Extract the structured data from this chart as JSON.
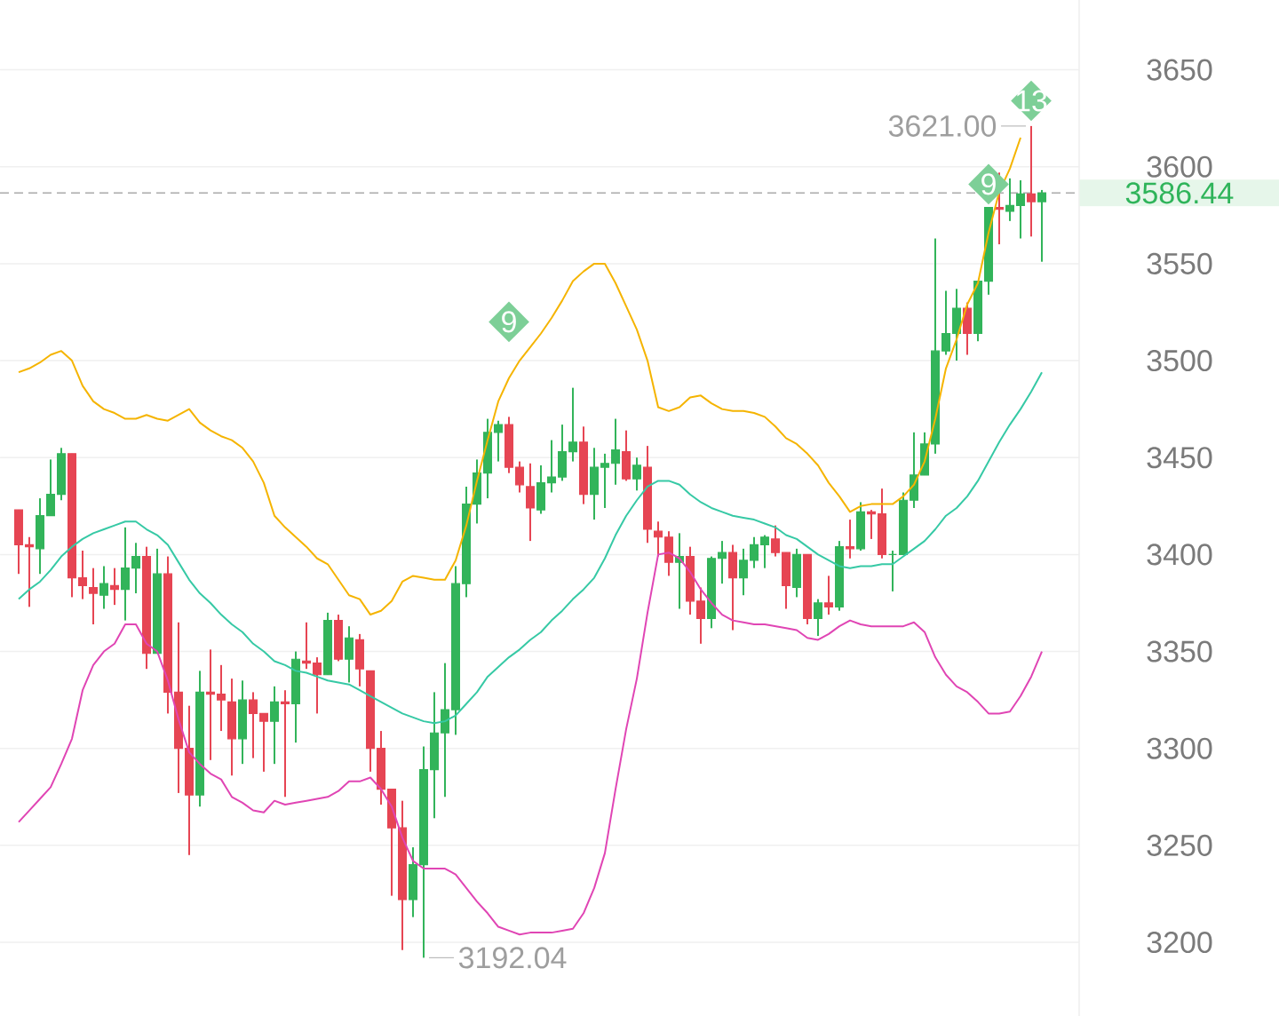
{
  "chart_data": {
    "type": "candlestick",
    "categories": [
      null,
      null,
      null,
      null,
      null,
      null,
      null,
      null,
      null,
      null,
      null,
      null,
      null,
      null,
      null,
      null,
      null,
      null,
      null,
      null,
      null,
      null,
      null,
      null,
      null,
      null,
      null,
      null,
      null,
      null,
      null,
      null,
      null,
      null,
      null,
      null,
      null,
      null,
      null,
      null,
      null,
      null,
      null,
      null,
      null,
      null,
      null,
      null,
      null,
      null,
      null,
      null,
      null,
      null,
      null,
      null,
      null,
      null,
      null,
      null,
      null,
      null,
      null,
      null,
      null,
      null,
      null,
      null,
      null,
      null,
      null,
      null,
      null,
      null,
      null,
      null,
      null,
      null,
      null,
      null,
      null,
      null,
      null,
      null,
      null,
      null,
      null,
      null,
      null,
      null,
      null,
      null,
      null,
      null,
      null,
      null,
      null
    ],
    "ohlc": [
      [
        3423,
        3423,
        3390,
        3405
      ],
      [
        3405,
        3409,
        3373,
        3404
      ],
      [
        3403,
        3429,
        3390,
        3420
      ],
      [
        3420,
        3449,
        3420,
        3431
      ],
      [
        3431,
        3455,
        3428,
        3452
      ],
      [
        3452,
        3452,
        3378,
        3388
      ],
      [
        3388,
        3402,
        3377,
        3384
      ],
      [
        3383,
        3393,
        3364,
        3380
      ],
      [
        3379,
        3394,
        3372,
        3385
      ],
      [
        3384,
        3393,
        3374,
        3382
      ],
      [
        3382,
        3414,
        3366,
        3393
      ],
      [
        3393,
        3406,
        3380,
        3399
      ],
      [
        3399,
        3404,
        3341,
        3349
      ],
      [
        3349,
        3403,
        3349,
        3390
      ],
      [
        3390,
        3399,
        3318,
        3329
      ],
      [
        3329,
        3365,
        3277,
        3300
      ],
      [
        3300,
        3322,
        3245,
        3276
      ],
      [
        3276,
        3340,
        3270,
        3329
      ],
      [
        3329,
        3351,
        3294,
        3328
      ],
      [
        3328,
        3343,
        3309,
        3325
      ],
      [
        3324,
        3336,
        3286,
        3305
      ],
      [
        3305,
        3335,
        3292,
        3325
      ],
      [
        3325,
        3329,
        3295,
        3318
      ],
      [
        3318,
        3318,
        3288,
        3314
      ],
      [
        3314,
        3332,
        3292,
        3324
      ],
      [
        3324,
        3330,
        3275,
        3323
      ],
      [
        3323,
        3350,
        3303,
        3346
      ],
      [
        3345,
        3365,
        3341,
        3344
      ],
      [
        3344,
        3347,
        3318,
        3338
      ],
      [
        3338,
        3370,
        3338,
        3366
      ],
      [
        3366,
        3369,
        3345,
        3346
      ],
      [
        3346,
        3363,
        3334,
        3357
      ],
      [
        3356,
        3359,
        3332,
        3341
      ],
      [
        3340,
        3340,
        3288,
        3300
      ],
      [
        3300,
        3309,
        3271,
        3279
      ],
      [
        3279,
        3279,
        3224,
        3259
      ],
      [
        3259,
        3273,
        3196,
        3222
      ],
      [
        3222,
        3249,
        3213,
        3240
      ],
      [
        3240,
        3301,
        3192.04,
        3289
      ],
      [
        3289,
        3329,
        3264,
        3308
      ],
      [
        3308,
        3344,
        3275,
        3320
      ],
      [
        3320,
        3394,
        3307,
        3385
      ],
      [
        3385,
        3435,
        3378,
        3426
      ],
      [
        3426,
        3449,
        3416,
        3442
      ],
      [
        3442,
        3470,
        3429,
        3463
      ],
      [
        3463,
        3469,
        3448,
        3467
      ],
      [
        3467,
        3471,
        3442,
        3445
      ],
      [
        3445,
        3448,
        3432,
        3436
      ],
      [
        3435,
        3447,
        3407,
        3424
      ],
      [
        3423,
        3446,
        3421,
        3437
      ],
      [
        3437,
        3459,
        3432,
        3440
      ],
      [
        3440,
        3467,
        3438,
        3453
      ],
      [
        3453,
        3486,
        3448,
        3458
      ],
      [
        3458,
        3466,
        3426,
        3431
      ],
      [
        3431,
        3455,
        3418,
        3445
      ],
      [
        3445,
        3452,
        3424,
        3447
      ],
      [
        3447,
        3470,
        3436,
        3454
      ],
      [
        3453,
        3464,
        3438,
        3439
      ],
      [
        3439,
        3450,
        3433,
        3446
      ],
      [
        3445,
        3456,
        3406,
        3413
      ],
      [
        3412,
        3417,
        3399,
        3409
      ],
      [
        3409,
        3412,
        3389,
        3396
      ],
      [
        3396,
        3411,
        3372,
        3399
      ],
      [
        3399,
        3404,
        3369,
        3376
      ],
      [
        3376,
        3383,
        3354,
        3367
      ],
      [
        3367,
        3399,
        3362,
        3398
      ],
      [
        3398,
        3407,
        3385,
        3401
      ],
      [
        3401,
        3405,
        3361,
        3388
      ],
      [
        3388,
        3403,
        3379,
        3397
      ],
      [
        3397,
        3409,
        3393,
        3405
      ],
      [
        3405,
        3410,
        3393,
        3409
      ],
      [
        3408,
        3415,
        3399,
        3401
      ],
      [
        3401,
        3401,
        3372,
        3384
      ],
      [
        3383,
        3403,
        3378,
        3400
      ],
      [
        3400,
        3400,
        3364,
        3367
      ],
      [
        3367,
        3377,
        3358,
        3375
      ],
      [
        3375,
        3389,
        3369,
        3373
      ],
      [
        3373,
        3407,
        3371,
        3404
      ],
      [
        3404,
        3418,
        3398,
        3403
      ],
      [
        3403,
        3427,
        3402,
        3422
      ],
      [
        3422,
        3423,
        3408,
        3421
      ],
      [
        3421,
        3434,
        3398,
        3400
      ],
      [
        3400,
        3402,
        3381,
        3400
      ],
      [
        3400,
        3432,
        3400,
        3428
      ],
      [
        3428,
        3463,
        3424,
        3441
      ],
      [
        3441,
        3463,
        3441,
        3457
      ],
      [
        3457,
        3563,
        3452,
        3505
      ],
      [
        3505,
        3536,
        3503,
        3514
      ],
      [
        3514,
        3537,
        3500,
        3527
      ],
      [
        3527,
        3530,
        3503,
        3514
      ],
      [
        3514,
        3541,
        3510,
        3541
      ],
      [
        3541,
        3579,
        3534,
        3579
      ],
      [
        3579,
        3597,
        3560,
        3578
      ],
      [
        3577,
        3594,
        3572,
        3580
      ],
      [
        3580,
        3593,
        3563,
        3586
      ],
      [
        3586,
        3621.0,
        3564,
        3582
      ],
      [
        3582,
        3588,
        3551,
        3586.44
      ]
    ],
    "colors": [
      "#e64553",
      "#e64553",
      "#32b45a",
      "#32b45a",
      "#32b45a",
      "#e64553",
      "#e64553",
      "#e64553",
      "#32b45a",
      "#e64553",
      "#32b45a",
      "#32b45a",
      "#e64553",
      "#32b45a",
      "#e64553",
      "#e64553",
      "#e64553",
      "#32b45a",
      "#e64553",
      "#e64553",
      "#e64553",
      "#32b45a",
      "#e64553",
      "#e64553",
      "#32b45a",
      "#e64553",
      "#32b45a",
      "#e64553",
      "#e64553",
      "#32b45a",
      "#e64553",
      "#32b45a",
      "#e64553",
      "#e64553",
      "#e64553",
      "#e64553",
      "#e64553",
      "#32b45a",
      "#32b45a",
      "#32b45a",
      "#32b45a",
      "#32b45a",
      "#32b45a",
      "#32b45a",
      "#32b45a",
      "#32b45a",
      "#e64553",
      "#e64553",
      "#e64553",
      "#32b45a",
      "#32b45a",
      "#32b45a",
      "#32b45a",
      "#e64553",
      "#32b45a",
      "#32b45a",
      "#32b45a",
      "#e64553",
      "#32b45a",
      "#e64553",
      "#e64553",
      "#e64553",
      "#32b45a",
      "#e64553",
      "#e64553",
      "#32b45a",
      "#32b45a",
      "#e64553",
      "#32b45a",
      "#32b45a",
      "#32b45a",
      "#e64553",
      "#e64553",
      "#32b45a",
      "#e64553",
      "#32b45a",
      "#e64553",
      "#32b45a",
      "#e64553",
      "#32b45a",
      "#e64553",
      "#e64553",
      "#32b45a",
      "#32b45a",
      "#32b45a",
      "#32b45a",
      "#32b45a",
      "#32b45a",
      "#32b45a",
      "#e64553",
      "#32b45a",
      "#32b45a",
      "#e64553",
      "#32b45a",
      "#32b45a",
      "#e64553",
      "#32b45a"
    ],
    "series": [
      {
        "type": "line",
        "color": "#f5b400",
        "values": [
          3494,
          3496,
          3499,
          3503,
          3505,
          3500,
          3487,
          3479,
          3475,
          3473,
          3470,
          3470,
          3472,
          3470,
          3469,
          3472,
          3475,
          3468,
          3464,
          3461,
          3459,
          3455,
          3448,
          3437,
          3420,
          3414,
          3409,
          3404,
          3398,
          3395,
          3387,
          3379,
          3377,
          3369,
          3371,
          3376,
          3386,
          3389,
          3388,
          3387,
          3387,
          3397,
          3415,
          3438,
          3459,
          3479,
          3491,
          3500,
          3507,
          3514,
          3522,
          3531,
          3541,
          3546,
          3550,
          3550,
          3540,
          3528,
          3516,
          3500,
          3476,
          3474,
          3476,
          3481,
          3482,
          3478,
          3475,
          3474,
          3474,
          3473,
          3471,
          3466,
          3460,
          3457,
          3452,
          3446,
          3437,
          3430,
          3422,
          3425,
          3426,
          3426,
          3426,
          3430,
          3436,
          3448,
          3470,
          3496,
          3511,
          3529,
          3540,
          3566,
          3587,
          3599,
          3615,
          null,
          null
        ]
      },
      {
        "type": "line",
        "color": "#36c9a5",
        "values": [
          3377,
          3382,
          3386,
          3392,
          3399,
          3404,
          3408,
          3411,
          3413,
          3415,
          3417,
          3417,
          3413,
          3410,
          3405,
          3396,
          3387,
          3380,
          3375,
          3369,
          3364,
          3360,
          3354,
          3350,
          3345,
          3343,
          3340,
          3339,
          3337,
          3335,
          3334,
          3333,
          3330,
          3327,
          3324,
          3321,
          3318,
          3316,
          3314,
          3313,
          3314,
          3317,
          3323,
          3329,
          3337,
          3342,
          3347,
          3351,
          3356,
          3360,
          3366,
          3371,
          3377,
          3382,
          3388,
          3398,
          3410,
          3420,
          3428,
          3435,
          3438,
          3438,
          3436,
          3431,
          3427,
          3424,
          3422,
          3420,
          3419,
          3418,
          3416,
          3414,
          3410,
          3408,
          3404,
          3400,
          3397,
          3394,
          3393,
          3394,
          3394,
          3395,
          3395,
          3399,
          3403,
          3407,
          3413,
          3420,
          3424,
          3430,
          3438,
          3448,
          3458,
          3467,
          3475,
          3484,
          3494
        ]
      },
      {
        "type": "line",
        "color": "#e045b4",
        "values": [
          3262,
          3268,
          3274,
          3280,
          3292,
          3305,
          3330,
          3343,
          3350,
          3354,
          3364,
          3364,
          3354,
          3350,
          3335,
          3315,
          3298,
          3292,
          3287,
          3284,
          3275,
          3272,
          3268,
          3267,
          3273,
          3271,
          3272,
          3273,
          3274,
          3275,
          3278,
          3283,
          3283,
          3285,
          3279,
          3270,
          3254,
          3242,
          3238,
          3238,
          3238,
          3235,
          3228,
          3221,
          3215,
          3208,
          3206,
          3204,
          3205,
          3205,
          3205,
          3206,
          3207,
          3215,
          3228,
          3246,
          3279,
          3310,
          3336,
          3370,
          3400,
          3401,
          3398,
          3391,
          3382,
          3375,
          3369,
          3366,
          3365,
          3364,
          3364,
          3363,
          3362,
          3361,
          3357,
          3356,
          3359,
          3363,
          3366,
          3364,
          3363,
          3363,
          3363,
          3363,
          3365,
          3360,
          3347,
          3338,
          3332,
          3329,
          3324,
          3318,
          3318,
          3319,
          3327,
          3337,
          3350
        ]
      },
      {
        "type": "scatter",
        "color": "#7dcf97",
        "marker": "diamond",
        "values": [
          null,
          null,
          null,
          null,
          null,
          null,
          null,
          null,
          null,
          null,
          null,
          null,
          null,
          null,
          null,
          null,
          null,
          null,
          null,
          null,
          null,
          null,
          null,
          null,
          null,
          null,
          null,
          null,
          null,
          null,
          null,
          null,
          null,
          null,
          null,
          null,
          null,
          null,
          null,
          null,
          null,
          null,
          null,
          null,
          null,
          null,
          3520,
          null,
          null,
          null,
          null,
          null,
          null,
          null,
          null,
          null,
          null,
          null,
          null,
          null,
          null,
          null,
          null,
          null,
          null,
          null,
          null,
          null,
          null,
          null,
          null,
          null,
          null,
          null,
          null,
          null,
          null,
          null,
          null,
          null,
          null,
          null,
          null,
          null,
          null,
          null,
          null,
          null,
          null,
          null,
          null,
          3591,
          null,
          null,
          null,
          3634,
          null
        ]
      }
    ],
    "ylim": [
      3162,
      3686
    ],
    "yticks": [
      3200,
      3250,
      3300,
      3350,
      3400,
      3450,
      3500,
      3550,
      3600,
      3650
    ],
    "tick_labels": "y",
    "grid": "y",
    "ref_lines": [
      {
        "axis": "y",
        "value": 3586.44,
        "label": "3586.44",
        "color": "#aaaaaa",
        "line_style": "dashed"
      }
    ],
    "annotations": [
      "3621.00",
      "3192.04",
      "9",
      "9",
      "13"
    ]
  }
}
